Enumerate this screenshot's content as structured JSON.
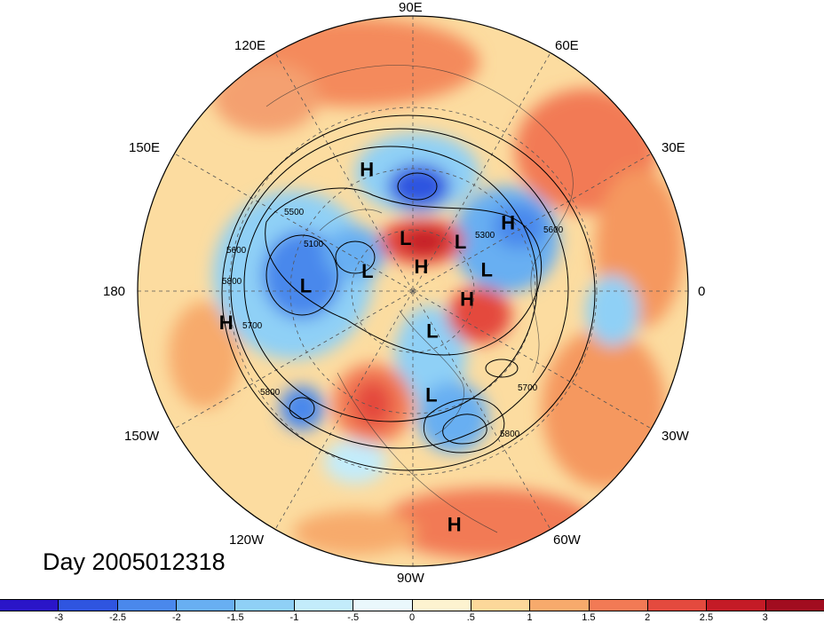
{
  "title": "Day 2005012318",
  "longitude_labels": {
    "top": "90E",
    "tl": "120E",
    "tr": "60E",
    "ul": "150E",
    "ur": "30E",
    "left": "180",
    "right": "0",
    "ll": "150W",
    "lr": "30W",
    "bl": "120W",
    "br": "60W",
    "bottom": "90W"
  },
  "pressure_centers": [
    {
      "label": "H",
      "lon": 111,
      "lat": 48
    },
    {
      "label": "H",
      "lon": 35,
      "lat": 52
    },
    {
      "label": "L",
      "lon": 98,
      "lat": 73
    },
    {
      "label": "H",
      "lon": 70,
      "lat": 82
    },
    {
      "label": "L",
      "lon": 45,
      "lat": 68
    },
    {
      "label": "L",
      "lon": 15,
      "lat": 65
    },
    {
      "label": "L",
      "lon": 158,
      "lat": 74
    },
    {
      "label": "L",
      "lon": 178,
      "lat": 55
    },
    {
      "label": "H",
      "lon": 350,
      "lat": 72
    },
    {
      "label": "L",
      "lon": 295,
      "lat": 75
    },
    {
      "label": "L",
      "lon": 280,
      "lat": 55
    },
    {
      "label": "H",
      "lon": 190,
      "lat": 28
    },
    {
      "label": "H",
      "lon": 280,
      "lat": 12
    }
  ],
  "contour_labels": [
    "5500",
    "5100",
    "5300",
    "5800",
    "5700",
    "5600",
    "5800",
    "5700",
    "5800",
    "5600"
  ],
  "colorbar": {
    "ticks": [
      "-3",
      "-2.5",
      "-2",
      "-1.5",
      "-1",
      "-.5",
      "0",
      ".5",
      "1",
      "1.5",
      "2",
      "2.5",
      "3"
    ],
    "colors": [
      "#2a15c8",
      "#2f55e0",
      "#4a88ec",
      "#68aff2",
      "#8fd0f6",
      "#c3ecfb",
      "#eaf8fc",
      "#fdf3d0",
      "#fcd89a",
      "#f7aa6c",
      "#f27a55",
      "#e44a3e",
      "#c41b26",
      "#a10c1f"
    ]
  }
}
